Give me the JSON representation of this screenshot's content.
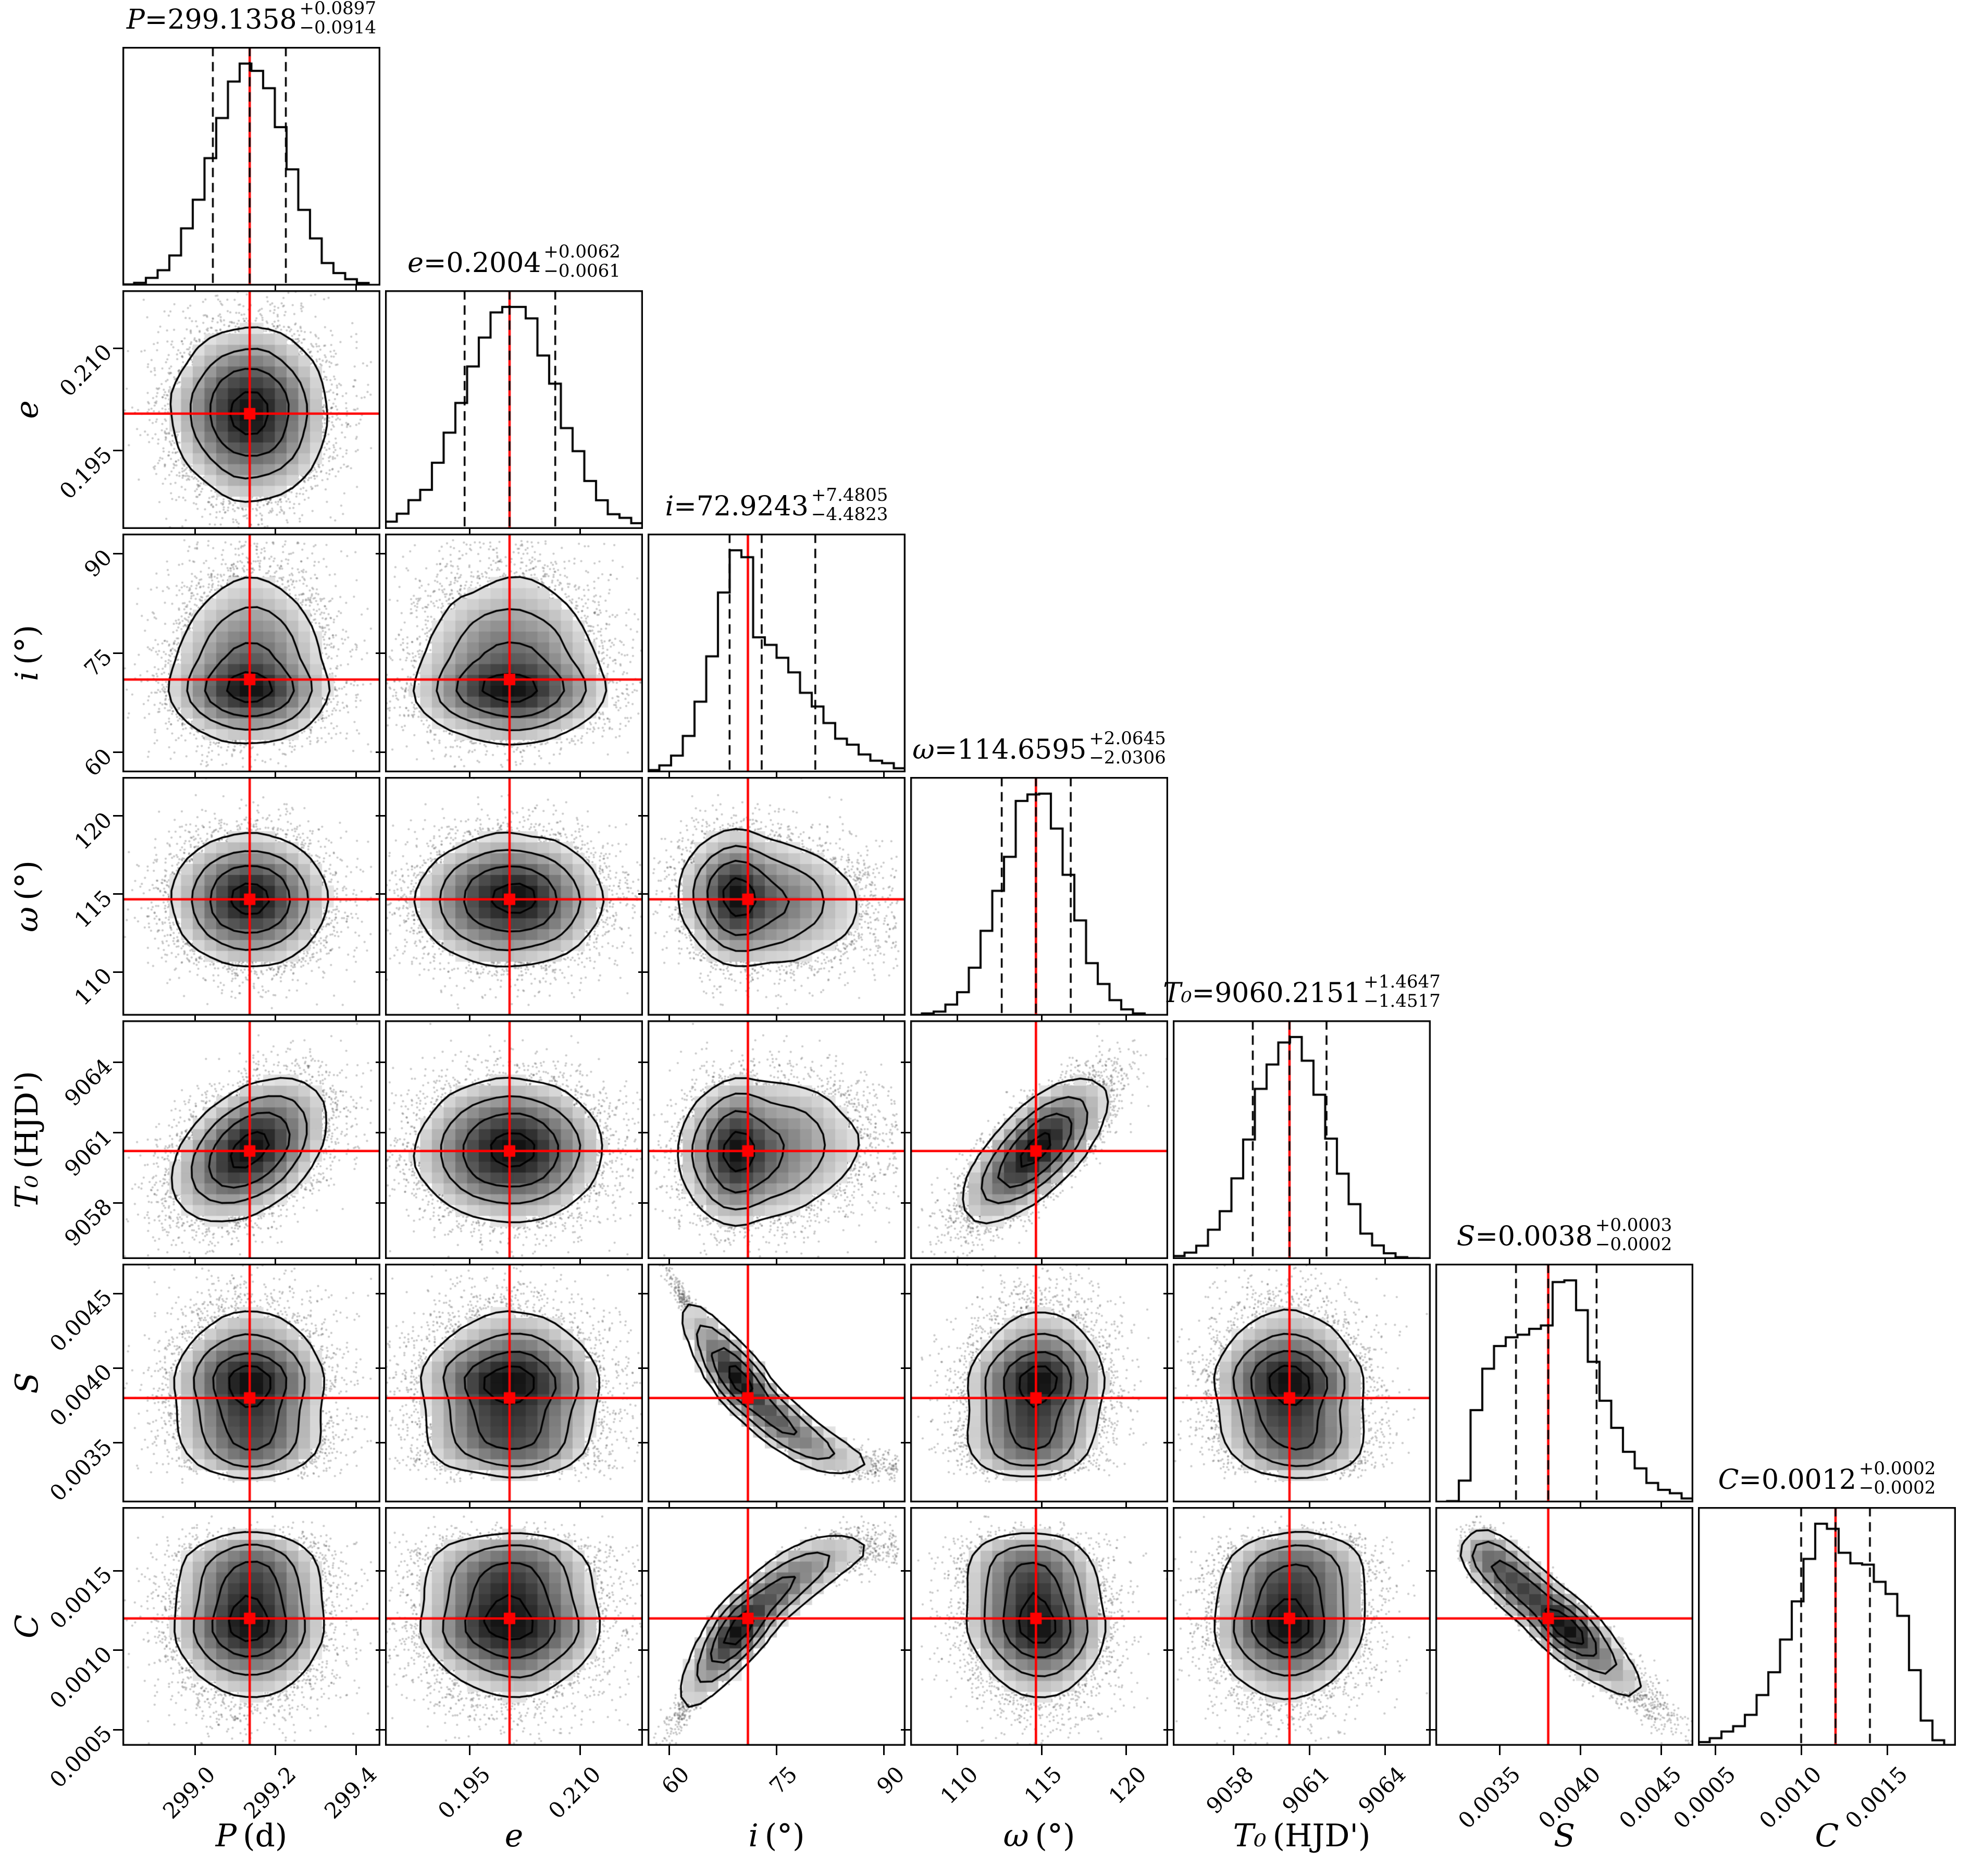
{
  "figure": {
    "kind": "corner-plot",
    "background": "#ffffff",
    "n_params": 7
  },
  "colors": {
    "truth_line": "#ff0000",
    "truth_marker": "#ff0000",
    "hist_line": "#000000",
    "contour_line": "#000000",
    "quantile_dash": "#000000",
    "scatter_dot": "rgba(55,55,55,0.27)",
    "frame": "#000000"
  },
  "chart_data": {
    "type": "corner",
    "params": [
      {
        "id": "P",
        "sym": "P",
        "unit": "(d)",
        "axis_label": "P (d)",
        "title": {
          "sym": "P",
          "eq": " = ",
          "value": "299.1358",
          "plus": "+0.0897",
          "minus": "−0.0914"
        },
        "range": [
          298.82,
          299.46
        ],
        "ticks": [
          299.0,
          299.2,
          299.4
        ],
        "tick_labels": [
          "299.0",
          "299.2",
          "299.4"
        ],
        "median": 299.1358,
        "err_plus": 0.0897,
        "err_minus": 0.0914,
        "truth": 299.1358,
        "dist": "normal",
        "sigma": 0.093
      },
      {
        "id": "e",
        "sym": "e",
        "unit": "",
        "axis_label": "e",
        "title": {
          "sym": "e",
          "eq": " = ",
          "value": "0.2004",
          "plus": "+0.0062",
          "minus": "−0.0061"
        },
        "range": [
          0.1835,
          0.2185
        ],
        "ticks": [
          0.195,
          0.21
        ],
        "tick_labels": [
          "0.195",
          "0.210"
        ],
        "median": 0.2004,
        "err_plus": 0.0062,
        "err_minus": 0.0061,
        "truth": 0.2004,
        "dist": "normal",
        "sigma": 0.0062
      },
      {
        "id": "i",
        "sym": "i",
        "unit": "(°)",
        "axis_label": "i (°)",
        "title": {
          "sym": "i",
          "eq": " = ",
          "value": "72.9243",
          "plus": "+7.4805",
          "minus": "−4.4823"
        },
        "range": [
          57.0,
          93.0
        ],
        "ticks": [
          60,
          75,
          90
        ],
        "tick_labels": [
          "60",
          "75",
          "90"
        ],
        "median": 72.9243,
        "err_plus": 7.4805,
        "err_minus": 4.4823,
        "truth": 71.0,
        "dist": "skew",
        "skew": {
          "mode": 71.3,
          "sigma_lo": 4.3,
          "sigma_hi": 7.9,
          "cap": 92.0,
          "reflect": 0.45
        }
      },
      {
        "id": "omega",
        "sym": "ω",
        "unit": "(°)",
        "axis_label": "ω (°)",
        "title": {
          "sym": "ω",
          "eq": " = ",
          "value": "114.6595",
          "plus": "+2.0645",
          "minus": "−2.0306"
        },
        "range": [
          107.2,
          122.5
        ],
        "ticks": [
          110,
          115,
          120
        ],
        "tick_labels": [
          "110",
          "115",
          "120"
        ],
        "median": 114.6595,
        "err_plus": 2.0645,
        "err_minus": 2.0306,
        "truth": 114.6595,
        "dist": "normal",
        "sigma": 2.0
      },
      {
        "id": "T0",
        "sym": "T₀",
        "unit": "(HJD')",
        "axis_label": "T₀ (HJD')",
        "title": {
          "sym": "T₀",
          "eq": " = ",
          "value": "9060.2151",
          "plus": "+1.4647",
          "minus": "−1.4517"
        },
        "range": [
          9055.6,
          9065.8
        ],
        "ticks": [
          9058,
          9061,
          9064
        ],
        "tick_labels": [
          "9058",
          "9061",
          "9064"
        ],
        "median": 9060.2151,
        "err_plus": 1.4647,
        "err_minus": 1.4517,
        "truth": 9060.2151,
        "dist": "normal",
        "sigma": 1.46
      },
      {
        "id": "S",
        "sym": "S",
        "unit": "",
        "axis_label": "S",
        "title": {
          "sym": "S",
          "eq": " = ",
          "value": "0.0038",
          "plus": "+0.0003",
          "minus": "−0.0002"
        },
        "range": [
          0.0031,
          0.0047
        ],
        "ticks": [
          0.0035,
          0.004,
          0.0045
        ],
        "tick_labels": [
          "0.0035",
          "0.0040",
          "0.0045"
        ],
        "median": 0.0038,
        "err_plus": 0.0003,
        "err_minus": 0.0002,
        "truth": 0.0038,
        "dist": "derived",
        "noise": 5.2e-05
      },
      {
        "id": "C",
        "sym": "C",
        "unit": "",
        "axis_label": "C",
        "title": {
          "sym": "C",
          "eq": " = ",
          "value": "0.0012",
          "plus": "+0.0002",
          "minus": "−0.0002"
        },
        "range": [
          0.0004,
          0.0019
        ],
        "ticks": [
          0.0005,
          0.001,
          0.0015
        ],
        "tick_labels": [
          "0.0005",
          "0.0010",
          "0.0015"
        ],
        "median": 0.0012,
        "err_plus": 0.0002,
        "err_minus": 0.0002,
        "truth": 0.0012,
        "dist": "derived",
        "noise": 7.2e-05
      }
    ],
    "dependencies": {
      "T0_on_P_corr": 0.45,
      "T0_on_omega_corr": 0.78,
      "T0_independent": 0.43,
      "omega_i_slope": -0.25,
      "T0_i_slope": 0.1,
      "S_poly_on_i": [
        0.015024,
        -0.0002608,
        1.4566e-06
      ],
      "C_poly_on_i": [
        -0.00898,
        0.0002378,
        -1.33e-06
      ],
      "notes": [
        "T0 vs omega: strong positive tilted ellipse",
        "T0 vs P: moderate positive tilted ellipse",
        "S vs i: tight concave-up descending banana",
        "C vs i: tight concave-down ascending banana",
        "S vs C: negative correlation via shared i dependence",
        "i distribution right-skewed with pile-up just below 92 deg"
      ]
    },
    "quantile_fractions": [
      0.16,
      0.5,
      0.84
    ],
    "contour_masses": [
      0.118,
      0.393,
      0.675,
      0.864
    ]
  }
}
